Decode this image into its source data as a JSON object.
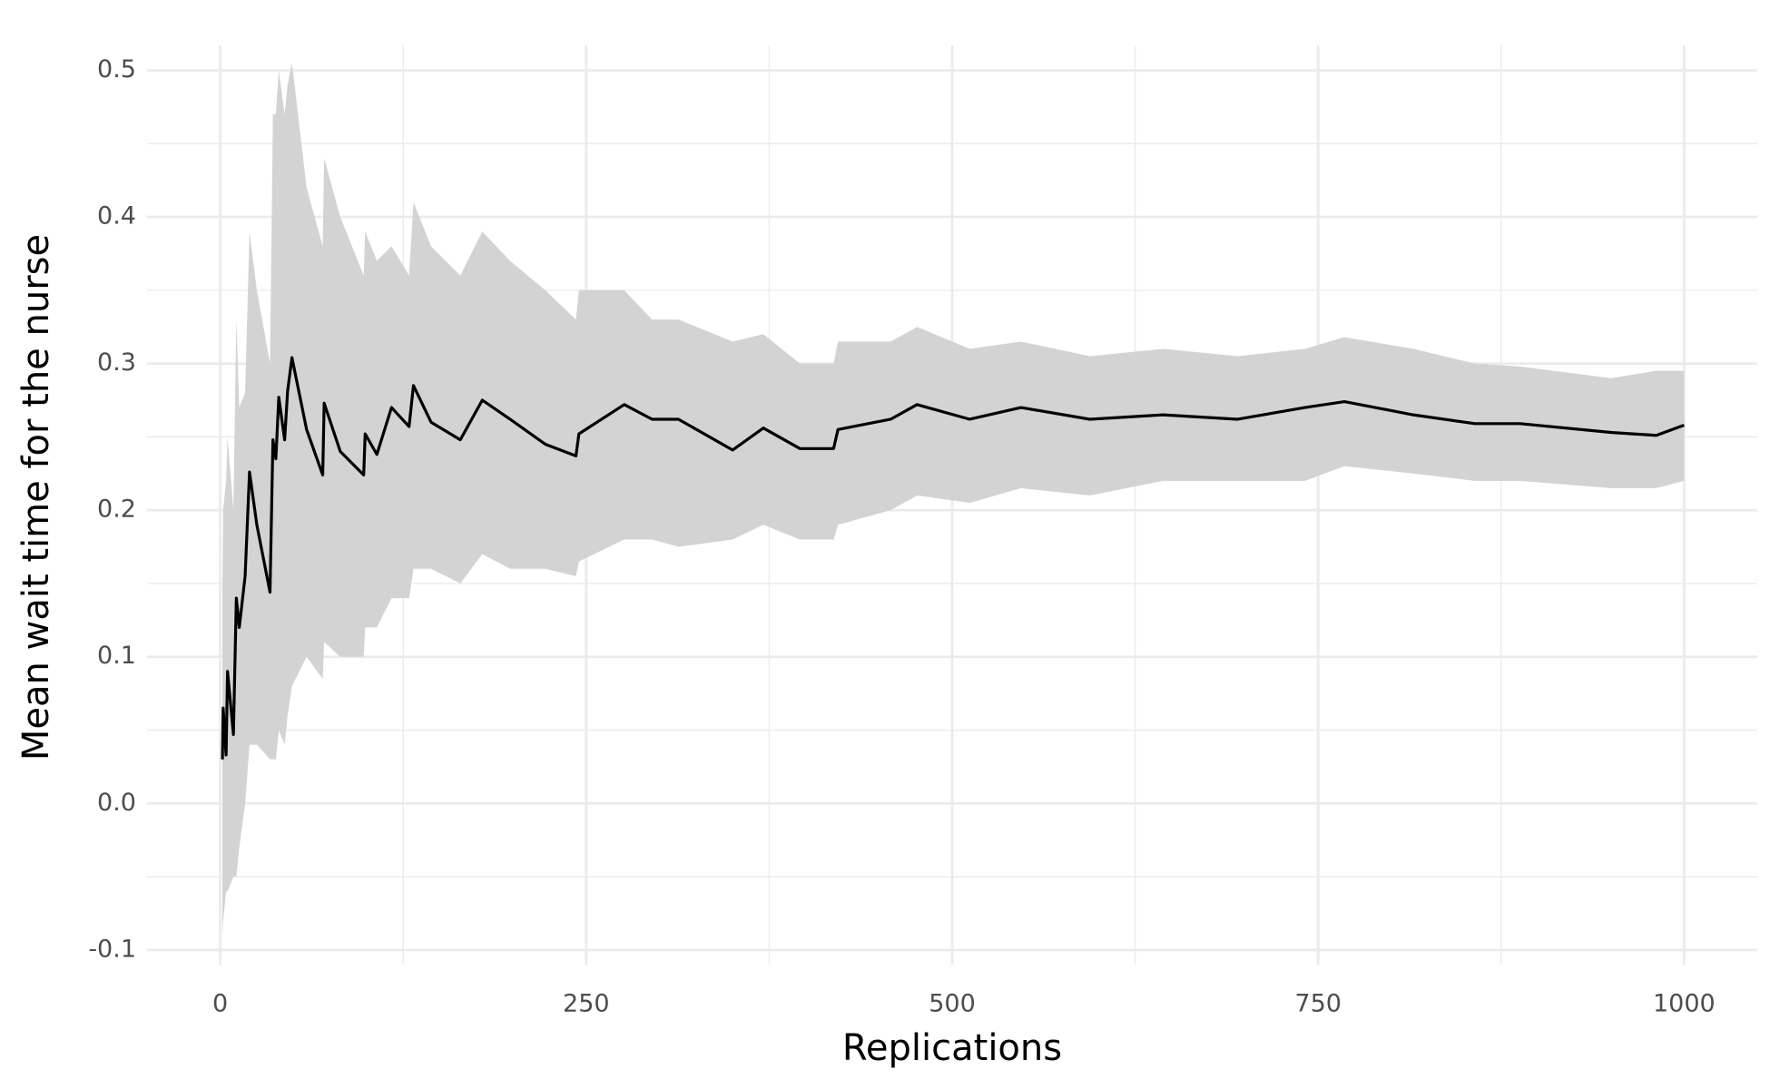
{
  "chart_data": {
    "type": "line",
    "x_label": "Replications",
    "y_label": "Mean wait time for the nurse",
    "x": [
      1.5,
      2,
      4,
      5,
      9,
      11,
      13,
      17,
      20,
      25,
      34,
      36,
      38,
      40,
      44,
      46,
      49,
      59,
      70,
      71,
      82,
      98,
      99,
      107,
      117,
      129,
      132,
      144,
      164,
      179,
      198,
      222,
      243,
      245,
      276,
      295,
      313,
      350,
      371,
      396,
      419,
      422,
      458,
      476,
      512,
      547,
      594,
      644,
      695,
      741,
      768,
      815,
      857,
      888,
      950,
      981,
      1000
    ],
    "values": [
      0.03,
      0.065,
      0.033,
      0.09,
      0.047,
      0.14,
      0.12,
      0.155,
      0.226,
      0.19,
      0.144,
      0.248,
      0.235,
      0.277,
      0.248,
      0.281,
      0.304,
      0.255,
      0.224,
      0.273,
      0.24,
      0.224,
      0.252,
      0.238,
      0.27,
      0.257,
      0.285,
      0.26,
      0.248,
      0.275,
      0.262,
      0.245,
      0.237,
      0.252,
      0.272,
      0.262,
      0.262,
      0.241,
      0.256,
      0.242,
      0.242,
      0.255,
      0.262,
      0.272,
      0.262,
      0.27,
      0.262,
      0.265,
      0.262,
      0.27,
      0.274,
      0.265,
      0.259,
      0.259,
      0.253,
      0.251,
      0.258
    ],
    "lower": [
      -0.09,
      -0.08,
      -0.06,
      -0.06,
      -0.05,
      -0.05,
      -0.03,
      0.0,
      0.04,
      0.04,
      0.03,
      0.03,
      0.03,
      0.05,
      0.04,
      0.06,
      0.08,
      0.1,
      0.085,
      0.11,
      0.1,
      0.1,
      0.12,
      0.12,
      0.14,
      0.14,
      0.16,
      0.16,
      0.15,
      0.17,
      0.16,
      0.16,
      0.155,
      0.165,
      0.18,
      0.18,
      0.175,
      0.18,
      0.19,
      0.18,
      0.18,
      0.19,
      0.2,
      0.21,
      0.205,
      0.215,
      0.21,
      0.22,
      0.22,
      0.22,
      0.23,
      0.225,
      0.22,
      0.22,
      0.215,
      0.215,
      0.22
    ],
    "upper": [
      0.15,
      0.2,
      0.22,
      0.25,
      0.2,
      0.33,
      0.27,
      0.28,
      0.39,
      0.35,
      0.3,
      0.47,
      0.47,
      0.5,
      0.47,
      0.49,
      0.505,
      0.42,
      0.38,
      0.44,
      0.4,
      0.36,
      0.39,
      0.37,
      0.38,
      0.36,
      0.41,
      0.38,
      0.36,
      0.39,
      0.37,
      0.35,
      0.33,
      0.35,
      0.35,
      0.33,
      0.33,
      0.315,
      0.32,
      0.3,
      0.3,
      0.315,
      0.315,
      0.325,
      0.31,
      0.315,
      0.305,
      0.31,
      0.305,
      0.31,
      0.318,
      0.31,
      0.3,
      0.298,
      0.29,
      0.295,
      0.295
    ],
    "color": "#000000",
    "band_color": "#d3d3d3",
    "xlim": [
      -50,
      1050
    ],
    "ylim": [
      -0.11,
      0.517
    ],
    "xticks": [
      0,
      250,
      500,
      750,
      1000
    ],
    "yticks": [
      -0.1,
      {
        "value": 0,
        "label": "0.0"
      },
      0.1,
      0.2,
      0.3,
      0.4,
      0.5
    ],
    "x_minor_ticks": [
      125,
      375,
      625,
      875
    ],
    "y_minor_ticks": [
      -0.05,
      0.05,
      0.15,
      0.25,
      0.35,
      0.45
    ],
    "grid": true
  }
}
